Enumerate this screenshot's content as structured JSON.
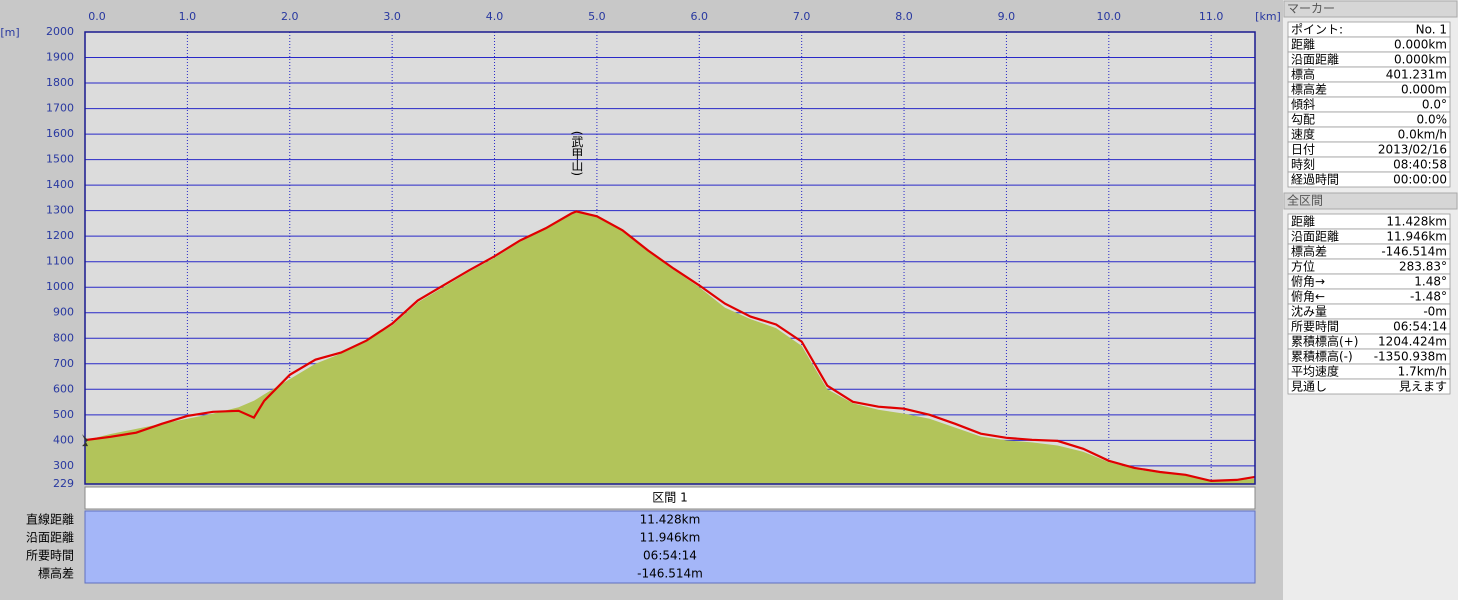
{
  "chart_data": {
    "type": "line",
    "y_axis_label": "[m]",
    "x_axis_label": "[km]",
    "annotation": "(武甲山)",
    "x": [
      0,
      0.25,
      0.5,
      0.75,
      1.0,
      1.25,
      1.5,
      1.65,
      1.75,
      2.0,
      2.25,
      2.5,
      2.75,
      3.0,
      3.25,
      3.5,
      3.75,
      4.0,
      4.25,
      4.5,
      4.75,
      4.8,
      5.0,
      5.25,
      5.5,
      5.75,
      6.0,
      6.25,
      6.5,
      6.75,
      7.0,
      7.25,
      7.5,
      7.75,
      8.0,
      8.25,
      8.5,
      8.75,
      9.0,
      9.25,
      9.5,
      9.75,
      10.0,
      10.25,
      10.5,
      10.75,
      11.0,
      11.25,
      11.428
    ],
    "series": [
      {
        "color": "#b2c45a",
        "fill": true,
        "values": [
          400,
          425,
          445,
          465,
          485,
          505,
          530,
          555,
          580,
          640,
          700,
          740,
          790,
          850,
          940,
          1000,
          1060,
          1115,
          1178,
          1228,
          1285,
          1295,
          1275,
          1220,
          1140,
          1068,
          1000,
          920,
          875,
          840,
          770,
          600,
          545,
          520,
          505,
          485,
          450,
          415,
          400,
          392,
          380,
          355,
          315,
          288,
          272,
          262,
          240,
          243,
          250
        ]
      },
      {
        "color": "#e00000",
        "fill": false,
        "values": [
          401,
          414,
          430,
          465,
          496,
          512,
          516,
          489,
          555,
          657,
          716,
          744,
          791,
          857,
          948,
          1007,
          1066,
          1121,
          1183,
          1231,
          1289,
          1297,
          1278,
          1223,
          1144,
          1073,
          1007,
          936,
          885,
          854,
          787,
          614,
          551,
          532,
          524,
          500,
          465,
          426,
          410,
          402,
          398,
          367,
          320,
          292,
          276,
          265,
          241,
          245,
          257
        ]
      }
    ],
    "xlim": [
      0,
      11.428
    ],
    "ylim": [
      229,
      2000
    ],
    "xticks": [
      {
        "value": 0,
        "label": "0.0"
      },
      {
        "value": 1,
        "label": "1.0"
      },
      {
        "value": 2,
        "label": "2.0"
      },
      {
        "value": 3,
        "label": "3.0"
      },
      {
        "value": 4,
        "label": "4.0"
      },
      {
        "value": 5,
        "label": "5.0"
      },
      {
        "value": 6,
        "label": "6.0"
      },
      {
        "value": 7,
        "label": "7.0"
      },
      {
        "value": 8,
        "label": "8.0"
      },
      {
        "value": 9,
        "label": "9.0"
      },
      {
        "value": 10,
        "label": "10.0"
      },
      {
        "value": 11,
        "label": "11.0"
      }
    ],
    "yticks": [
      229,
      300,
      400,
      500,
      600,
      700,
      800,
      900,
      1000,
      1100,
      1200,
      1300,
      1400,
      1500,
      1600,
      1700,
      1800,
      1900,
      2000
    ],
    "grid": true,
    "grid_color": "#2828c8"
  },
  "segment_table": {
    "header": "区間 1",
    "rows": [
      [
        "直線距離",
        "11.428km"
      ],
      [
        "沿面距離",
        "11.946km"
      ],
      [
        "所要時間",
        "06:54:14"
      ],
      [
        "標高差",
        "-146.514m"
      ]
    ]
  },
  "marker_panel": {
    "title": "マーカー",
    "rows": [
      [
        "ポイント:",
        "No. 1"
      ],
      [
        "距離",
        "0.000km"
      ],
      [
        "沿面距離",
        "0.000km"
      ],
      [
        "標高",
        "401.231m"
      ],
      [
        "標高差",
        "0.000m"
      ],
      [
        "傾斜",
        "0.0°"
      ],
      [
        "勾配",
        "0.0%"
      ],
      [
        "速度",
        "0.0km/h"
      ],
      [
        "日付",
        "2013/02/16"
      ],
      [
        "時刻",
        "08:40:58"
      ],
      [
        "経過時間",
        "00:00:00"
      ]
    ]
  },
  "section_panel": {
    "title": "全区間",
    "rows": [
      [
        "距離",
        "11.428km"
      ],
      [
        "沿面距離",
        "11.946km"
      ],
      [
        "標高差",
        "-146.514m"
      ],
      [
        "方位",
        "283.83°"
      ],
      [
        "俯角→",
        "1.48°"
      ],
      [
        "俯角←",
        "-1.48°"
      ],
      [
        "沈み量",
        "-0m"
      ],
      [
        "所要時間",
        "06:54:14"
      ],
      [
        "累積標高(+)",
        "1204.424m"
      ],
      [
        "累積標高(-)",
        "-1350.938m"
      ],
      [
        "平均速度",
        "1.7km/h"
      ],
      [
        "見通し",
        "見えます"
      ]
    ]
  }
}
